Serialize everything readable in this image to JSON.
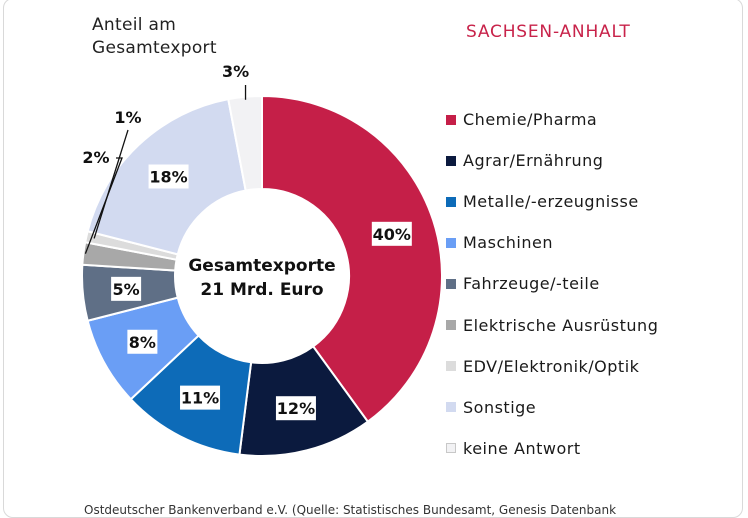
{
  "subtitle_line1": "Anteil am",
  "subtitle_line2": "Gesamtexport",
  "region": "SACHSEN-ANHALT",
  "footer": "Ostdeutscher Bankenverband e.V. (Quelle: Statistisches Bundesamt, Genesis Datenbank",
  "chart_data": {
    "type": "pie",
    "donut": true,
    "center_label_line1": "Gesamtexporte",
    "center_label_line2": "21 Mrd. Euro",
    "slices": [
      {
        "name": "Chemie/Pharma",
        "value": 40,
        "label": "40%",
        "color": "#c51f48"
      },
      {
        "name": "Agrar/Ernährung",
        "value": 12,
        "label": "12%",
        "color": "#0b1a3e"
      },
      {
        "name": "Metalle/-erzeugnisse",
        "value": 11,
        "label": "11%",
        "color": "#0d6bb8"
      },
      {
        "name": "Maschinen",
        "value": 8,
        "label": "8%",
        "color": "#6a9ef5"
      },
      {
        "name": "Fahrzeuge/-teile",
        "value": 5,
        "label": "5%",
        "color": "#5f6f86"
      },
      {
        "name": "Elektrische Ausrüstung",
        "value": 2,
        "label": "2%",
        "color": "#a8a8a8"
      },
      {
        "name": "EDV/Elektronik/Optik",
        "value": 1,
        "label": "1%",
        "color": "#dcdcdc"
      },
      {
        "name": "Sonstige",
        "value": 18,
        "label": "18%",
        "color": "#d2daf0"
      },
      {
        "name": "keine Antwort",
        "value": 3,
        "label": "3%",
        "color": "#f2f2f4"
      }
    ],
    "legend_position": "right"
  }
}
